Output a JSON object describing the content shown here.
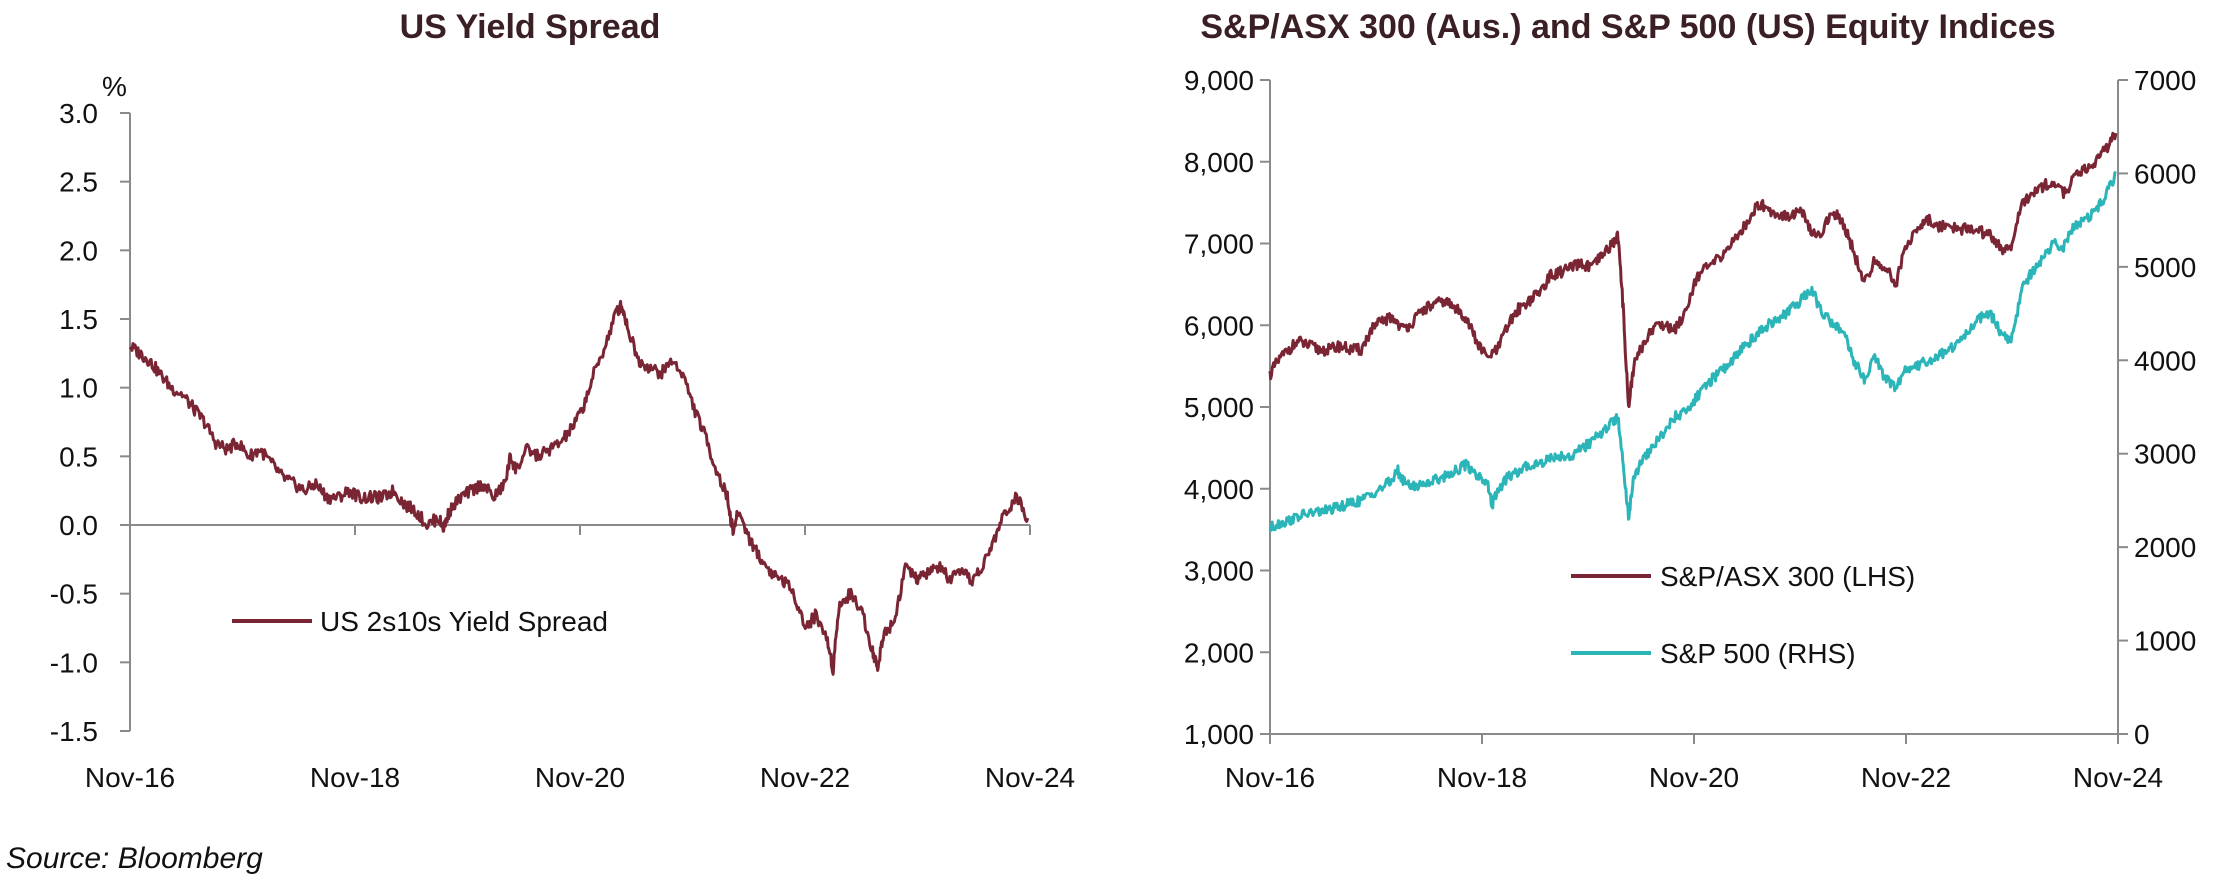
{
  "source": "Source: Bloomberg",
  "colors": {
    "maroon": "#7a2533",
    "teal": "#2bb5b8",
    "axis": "#8a8a8a"
  },
  "chart_data": [
    {
      "type": "line",
      "title": "US Yield Spread",
      "ylabel": "%",
      "ylim": [
        -1.5,
        3.0
      ],
      "yticks": [
        "3.0",
        "2.5",
        "2.0",
        "1.5",
        "1.0",
        "0.5",
        "0.0",
        "-0.5",
        "-1.0",
        "-1.5"
      ],
      "xticks": [
        "Nov-16",
        "Nov-18",
        "Nov-20",
        "Nov-22",
        "Nov-24"
      ],
      "xlim": [
        2016.83,
        2024.92
      ],
      "legend": "bottom-left",
      "series": [
        {
          "name": "US 2s10s Yield Spread",
          "color": "#7a2533",
          "x": [
            2016.83,
            2016.92,
            2017.0,
            2017.1,
            2017.2,
            2017.3,
            2017.4,
            2017.5,
            2017.6,
            2017.7,
            2017.8,
            2017.9,
            2018.0,
            2018.1,
            2018.2,
            2018.3,
            2018.4,
            2018.5,
            2018.6,
            2018.7,
            2018.8,
            2018.9,
            2019.0,
            2019.1,
            2019.2,
            2019.3,
            2019.4,
            2019.5,
            2019.6,
            2019.65,
            2019.7,
            2019.8,
            2019.9,
            2020.0,
            2020.1,
            2020.2,
            2020.25,
            2020.3,
            2020.4,
            2020.5,
            2020.6,
            2020.7,
            2020.8,
            2020.9,
            2021.0,
            2021.1,
            2021.2,
            2021.25,
            2021.3,
            2021.4,
            2021.5,
            2021.6,
            2021.7,
            2021.8,
            2021.9,
            2022.0,
            2022.1,
            2022.2,
            2022.25,
            2022.3,
            2022.4,
            2022.5,
            2022.6,
            2022.7,
            2022.8,
            2022.9,
            2023.0,
            2023.1,
            2023.15,
            2023.2,
            2023.3,
            2023.4,
            2023.5,
            2023.55,
            2023.6,
            2023.7,
            2023.8,
            2023.9,
            2024.0,
            2024.1,
            2024.2,
            2024.3,
            2024.4,
            2024.5,
            2024.6,
            2024.7,
            2024.8,
            2024.9
          ],
          "y": [
            1.3,
            1.25,
            1.2,
            1.1,
            1.0,
            0.95,
            0.85,
            0.75,
            0.6,
            0.55,
            0.6,
            0.5,
            0.55,
            0.45,
            0.35,
            0.3,
            0.25,
            0.3,
            0.2,
            0.2,
            0.25,
            0.2,
            0.2,
            0.2,
            0.25,
            0.15,
            0.1,
            0.0,
            0.05,
            -0.02,
            0.1,
            0.2,
            0.25,
            0.3,
            0.2,
            0.3,
            0.5,
            0.4,
            0.55,
            0.5,
            0.55,
            0.6,
            0.7,
            0.85,
            1.1,
            1.3,
            1.55,
            1.6,
            1.45,
            1.2,
            1.15,
            1.1,
            1.2,
            1.1,
            0.85,
            0.65,
            0.4,
            0.2,
            -0.05,
            0.1,
            -0.1,
            -0.25,
            -0.35,
            -0.4,
            -0.5,
            -0.75,
            -0.65,
            -0.85,
            -1.05,
            -0.6,
            -0.5,
            -0.6,
            -0.9,
            -1.05,
            -0.8,
            -0.7,
            -0.3,
            -0.4,
            -0.35,
            -0.3,
            -0.4,
            -0.35,
            -0.4,
            -0.3,
            -0.1,
            0.1,
            0.2,
            0.05
          ]
        }
      ]
    },
    {
      "type": "line",
      "title": "S&P/ASX 300 (Aus.) and S&P 500 (US) Equity Indices",
      "xticks": [
        "Nov-16",
        "Nov-18",
        "Nov-20",
        "Nov-22",
        "Nov-24"
      ],
      "xlim": [
        2016.83,
        2024.92
      ],
      "ylim_left": [
        1000,
        9000
      ],
      "yticks_left": [
        "9,000",
        "8,000",
        "7,000",
        "6,000",
        "5,000",
        "4,000",
        "3,000",
        "2,000",
        "1,000"
      ],
      "ylim_right": [
        0,
        7000
      ],
      "yticks_right": [
        "7000",
        "6000",
        "5000",
        "4000",
        "3000",
        "2000",
        "1000",
        "0"
      ],
      "legend": "bottom-right",
      "series": [
        {
          "name": "S&P/ASX 300 (LHS)",
          "axis": "left",
          "color": "#7a2533",
          "x": [
            2016.83,
            2016.9,
            2017.0,
            2017.1,
            2017.2,
            2017.3,
            2017.4,
            2017.5,
            2017.6,
            2017.7,
            2017.8,
            2017.9,
            2018.0,
            2018.1,
            2018.2,
            2018.3,
            2018.4,
            2018.5,
            2018.6,
            2018.7,
            2018.8,
            2018.9,
            2019.0,
            2019.1,
            2019.2,
            2019.3,
            2019.4,
            2019.5,
            2019.6,
            2019.7,
            2019.8,
            2019.9,
            2020.0,
            2020.1,
            2020.15,
            2020.2,
            2020.25,
            2020.3,
            2020.4,
            2020.5,
            2020.6,
            2020.7,
            2020.8,
            2020.9,
            2021.0,
            2021.1,
            2021.2,
            2021.3,
            2021.4,
            2021.5,
            2021.6,
            2021.7,
            2021.8,
            2021.9,
            2022.0,
            2022.1,
            2022.2,
            2022.3,
            2022.4,
            2022.5,
            2022.6,
            2022.7,
            2022.8,
            2022.9,
            2023.0,
            2023.1,
            2023.2,
            2023.3,
            2023.4,
            2023.5,
            2023.6,
            2023.7,
            2023.8,
            2023.9,
            2024.0,
            2024.1,
            2024.2,
            2024.3,
            2024.4,
            2024.5,
            2024.6,
            2024.7,
            2024.8,
            2024.9
          ],
          "y": [
            5400,
            5550,
            5700,
            5800,
            5750,
            5700,
            5700,
            5750,
            5700,
            5700,
            5950,
            6050,
            6100,
            5950,
            6050,
            6200,
            6250,
            6300,
            6200,
            6100,
            5800,
            5600,
            5700,
            6000,
            6200,
            6300,
            6400,
            6600,
            6650,
            6700,
            6750,
            6700,
            6850,
            7000,
            7100,
            6200,
            5000,
            5500,
            5800,
            6000,
            6000,
            5950,
            6200,
            6600,
            6700,
            6800,
            6950,
            7100,
            7300,
            7500,
            7400,
            7350,
            7350,
            7400,
            7100,
            7150,
            7400,
            7250,
            6900,
            6500,
            6800,
            6700,
            6500,
            7000,
            7150,
            7300,
            7200,
            7250,
            7150,
            7200,
            7150,
            7100,
            6950,
            6900,
            7500,
            7600,
            7700,
            7750,
            7600,
            7800,
            7900,
            8000,
            8150,
            8350
          ]
        },
        {
          "name": "S&P 500 (RHS)",
          "axis": "right",
          "color": "#2bb5b8",
          "x": [
            2016.83,
            2016.9,
            2017.0,
            2017.1,
            2017.2,
            2017.3,
            2017.4,
            2017.5,
            2017.6,
            2017.7,
            2017.8,
            2017.9,
            2018.0,
            2018.05,
            2018.1,
            2018.2,
            2018.3,
            2018.4,
            2018.5,
            2018.6,
            2018.7,
            2018.8,
            2018.9,
            2018.95,
            2019.0,
            2019.1,
            2019.2,
            2019.3,
            2019.4,
            2019.5,
            2019.6,
            2019.7,
            2019.8,
            2019.9,
            2020.0,
            2020.1,
            2020.15,
            2020.2,
            2020.25,
            2020.3,
            2020.4,
            2020.5,
            2020.6,
            2020.7,
            2020.8,
            2020.9,
            2021.0,
            2021.1,
            2021.2,
            2021.3,
            2021.4,
            2021.5,
            2021.6,
            2021.7,
            2021.8,
            2021.9,
            2022.0,
            2022.1,
            2022.2,
            2022.3,
            2022.4,
            2022.5,
            2022.6,
            2022.7,
            2022.8,
            2022.9,
            2023.0,
            2023.1,
            2023.2,
            2023.3,
            2023.4,
            2023.5,
            2023.6,
            2023.7,
            2023.8,
            2023.9,
            2024.0,
            2024.1,
            2024.2,
            2024.3,
            2024.4,
            2024.5,
            2024.6,
            2024.7,
            2024.8,
            2024.9
          ],
          "y": [
            2200,
            2250,
            2280,
            2330,
            2360,
            2380,
            2400,
            2430,
            2470,
            2500,
            2570,
            2640,
            2720,
            2820,
            2700,
            2650,
            2680,
            2720,
            2760,
            2820,
            2880,
            2780,
            2700,
            2450,
            2600,
            2750,
            2800,
            2880,
            2900,
            2950,
            2980,
            2970,
            3050,
            3130,
            3230,
            3350,
            3380,
            2900,
            2300,
            2750,
            2950,
            3100,
            3250,
            3400,
            3450,
            3600,
            3750,
            3850,
            3950,
            4100,
            4200,
            4300,
            4400,
            4450,
            4550,
            4650,
            4750,
            4500,
            4400,
            4300,
            4000,
            3800,
            4050,
            3800,
            3700,
            3900,
            3950,
            3980,
            4050,
            4100,
            4200,
            4300,
            4450,
            4500,
            4300,
            4200,
            4750,
            4950,
            5100,
            5250,
            5200,
            5450,
            5500,
            5600,
            5750,
            6000
          ]
        }
      ]
    }
  ]
}
